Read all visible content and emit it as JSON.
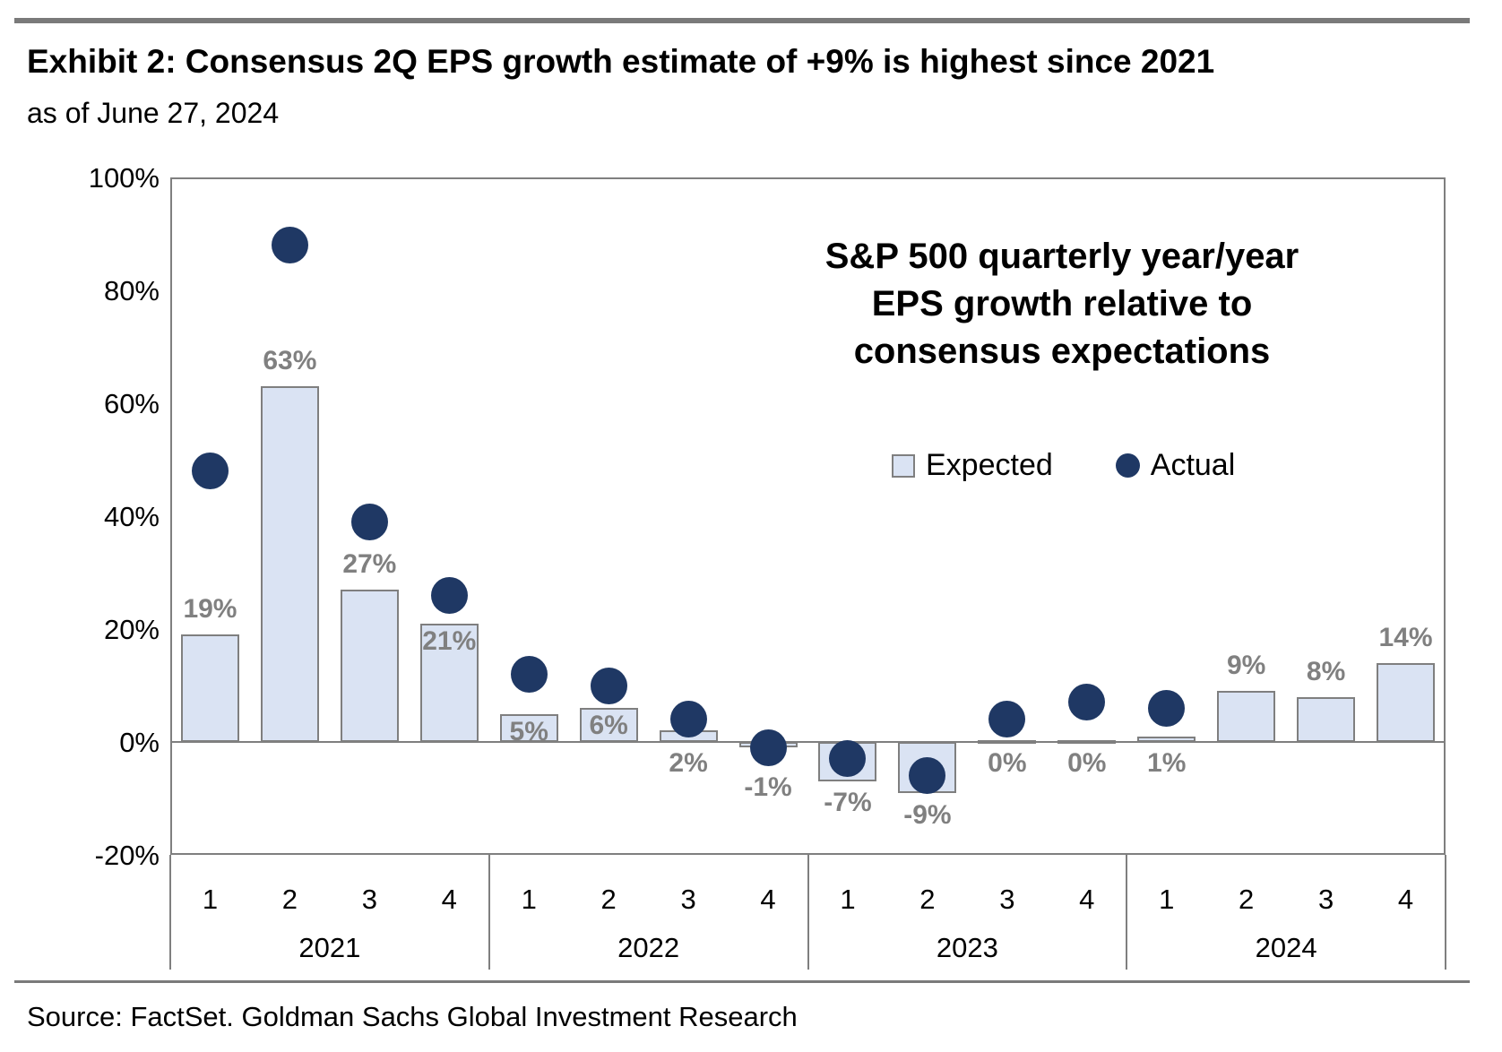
{
  "header": {
    "title": "Exhibit 2: Consensus 2Q EPS growth estimate of +9% is highest since 2021",
    "subtitle": "as of June 27, 2024"
  },
  "annotation": {
    "line1": "S&P 500 quarterly year/year",
    "line2": "EPS growth relative to",
    "line3": "consensus expectations"
  },
  "legend": {
    "expected_label": "Expected",
    "actual_label": "Actual"
  },
  "footer": {
    "source": "Source: FactSet. Goldman Sachs Global Investment Research"
  },
  "colors": {
    "expected_fill": "#dae3f3",
    "expected_border": "#7f7f7f",
    "actual_dot": "#1f3864",
    "data_label": "#808080",
    "axis_line": "#7f7f7f",
    "rule_gray": "#7a7a7a"
  },
  "chart_data": {
    "type": "bar",
    "subtype": "bar-with-scatter-overlay",
    "title": "S&P 500 quarterly year/year EPS growth relative to consensus expectations",
    "categories": [
      "2021 Q1",
      "2021 Q2",
      "2021 Q3",
      "2021 Q4",
      "2022 Q1",
      "2022 Q2",
      "2022 Q3",
      "2022 Q4",
      "2023 Q1",
      "2023 Q2",
      "2023 Q3",
      "2023 Q4",
      "2024 Q1",
      "2024 Q2",
      "2024 Q3",
      "2024 Q4"
    ],
    "series": [
      {
        "name": "Expected",
        "type": "bar",
        "values": [
          19,
          63,
          27,
          21,
          5,
          6,
          2,
          -1,
          -7,
          -9,
          0,
          0,
          1,
          9,
          8,
          14
        ],
        "labels": [
          "19%",
          "63%",
          "27%",
          "21%",
          "5%",
          "6%",
          "2%",
          "-1%",
          "-7%",
          "-9%",
          "0%",
          "0%",
          "1%",
          "9%",
          "8%",
          "14%"
        ],
        "label_positions": [
          "above",
          "above",
          "above",
          "inside",
          "inside",
          "inside",
          "below",
          "below",
          "below",
          "below",
          "below",
          "below",
          "below",
          "above",
          "above",
          "above"
        ]
      },
      {
        "name": "Actual",
        "type": "scatter",
        "values": [
          48,
          88,
          39,
          26,
          12,
          10,
          4,
          -1,
          -3,
          -6,
          4,
          7,
          6,
          null,
          null,
          null
        ]
      }
    ],
    "x_groups": [
      {
        "year": "2021",
        "quarters": [
          "1",
          "2",
          "3",
          "4"
        ]
      },
      {
        "year": "2022",
        "quarters": [
          "1",
          "2",
          "3",
          "4"
        ]
      },
      {
        "year": "2023",
        "quarters": [
          "1",
          "2",
          "3",
          "4"
        ]
      },
      {
        "year": "2024",
        "quarters": [
          "1",
          "2",
          "3",
          "4"
        ]
      }
    ],
    "y_ticks": [
      {
        "value": 100,
        "label": "100%"
      },
      {
        "value": 80,
        "label": "80%"
      },
      {
        "value": 60,
        "label": "60%"
      },
      {
        "value": 40,
        "label": "40%"
      },
      {
        "value": 20,
        "label": "20%"
      },
      {
        "value": 0,
        "label": "0%"
      },
      {
        "value": -20,
        "label": "-20%"
      }
    ],
    "ylim": [
      -20,
      100
    ],
    "grid": false,
    "legend_position": "center-right above plot middle"
  }
}
